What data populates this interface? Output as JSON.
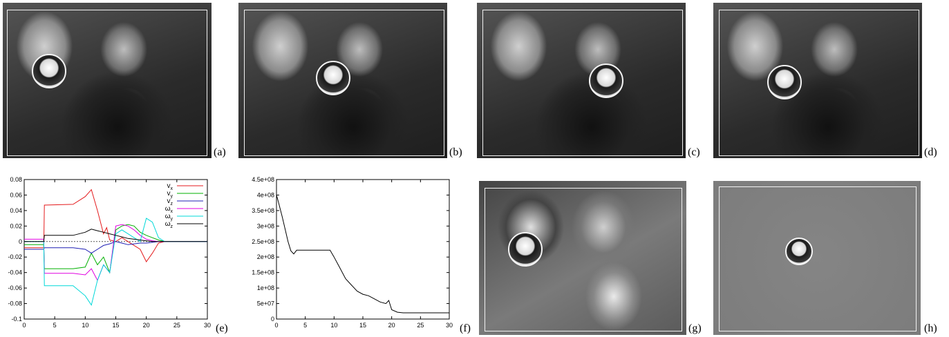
{
  "labels": {
    "a": "(a)",
    "b": "(b)",
    "c": "(c)",
    "d": "(d)",
    "e": "(e)",
    "f": "(f)",
    "g": "(g)",
    "h": "(h)"
  },
  "chart_data": [
    {
      "type": "line",
      "panel": "(e)",
      "xlim": [
        0,
        30
      ],
      "ylim": [
        -0.1,
        0.08
      ],
      "xticks": [
        0,
        5,
        10,
        15,
        20,
        25,
        30
      ],
      "yticks": [
        -0.1,
        -0.08,
        -0.06,
        -0.04,
        -0.02,
        0,
        0.02,
        0.04,
        0.06,
        0.08
      ],
      "ytick_labels": [
        "-0.1",
        "-0.08",
        "-0.06",
        "-0.04",
        "-0.02",
        "0",
        "0.02",
        "0.04",
        "0.06",
        "0.08"
      ],
      "legend_position": "top-right",
      "series": [
        {
          "name": "vx",
          "label_main": "v",
          "label_sub": "x",
          "color": "#e41a1c",
          "x": [
            0,
            3.2,
            3.3,
            8,
            10,
            11,
            12,
            13,
            13.5,
            14,
            15,
            16,
            17,
            18,
            19,
            20,
            21,
            22,
            23,
            30
          ],
          "y": [
            -0.008,
            -0.008,
            0.047,
            0.048,
            0.058,
            0.067,
            0.04,
            0.01,
            0.018,
            0.002,
            0.0,
            0.005,
            0.0,
            -0.005,
            -0.01,
            -0.026,
            -0.015,
            -0.002,
            0.0,
            0.0
          ]
        },
        {
          "name": "vy",
          "label_main": "v",
          "label_sub": "y",
          "color": "#00b000",
          "x": [
            0,
            3.2,
            3.3,
            8,
            10,
            11,
            12,
            13,
            14,
            15,
            16,
            17,
            18,
            19,
            20,
            21,
            22,
            23,
            30
          ],
          "y": [
            -0.004,
            -0.004,
            -0.035,
            -0.035,
            -0.033,
            -0.015,
            -0.03,
            -0.02,
            -0.04,
            0.015,
            0.02,
            0.022,
            0.02,
            0.012,
            0.008,
            0.005,
            0.002,
            0.0,
            0.0
          ]
        },
        {
          "name": "vz",
          "label_main": "v",
          "label_sub": "z",
          "color": "#1f1fb4",
          "x": [
            0,
            3.2,
            3.3,
            8,
            10,
            11,
            12,
            13,
            14,
            15,
            16,
            17,
            18,
            19,
            20,
            21,
            22,
            23,
            30
          ],
          "y": [
            -0.01,
            -0.01,
            -0.008,
            -0.008,
            -0.01,
            -0.015,
            -0.01,
            -0.005,
            -0.003,
            0.0,
            -0.002,
            -0.004,
            -0.003,
            -0.002,
            -0.002,
            -0.001,
            0.0,
            0.0,
            0.0
          ]
        },
        {
          "name": "ωx",
          "label_main": "ω",
          "label_sub": "x",
          "color": "#e000e0",
          "x": [
            0,
            3.2,
            3.3,
            8,
            10,
            11,
            12,
            13,
            14,
            15,
            16,
            17,
            18,
            19,
            20,
            21,
            22,
            23,
            30
          ],
          "y": [
            0.003,
            0.003,
            -0.041,
            -0.041,
            -0.043,
            -0.035,
            -0.05,
            -0.03,
            -0.04,
            0.02,
            0.022,
            0.02,
            0.015,
            0.008,
            0.003,
            0.001,
            0.0,
            0.0,
            0.0
          ]
        },
        {
          "name": "ωy",
          "label_main": "ω",
          "label_sub": "y",
          "color": "#00d8d8",
          "x": [
            0,
            3.2,
            3.3,
            8,
            10,
            11,
            12,
            13,
            14,
            15,
            16,
            17,
            18,
            19,
            20,
            21,
            22,
            23,
            30
          ],
          "y": [
            0.0,
            0.0,
            -0.057,
            -0.057,
            -0.07,
            -0.082,
            -0.05,
            -0.03,
            -0.04,
            0.01,
            0.015,
            0.01,
            0.005,
            0.0,
            0.03,
            0.025,
            0.005,
            0.0,
            0.0
          ]
        },
        {
          "name": "ωz",
          "label_main": "ω",
          "label_sub": "z",
          "color": "#000000",
          "x": [
            0,
            3.2,
            3.3,
            8,
            10,
            11,
            12,
            13,
            14,
            15,
            16,
            17,
            18,
            19,
            20,
            21,
            22,
            23,
            30
          ],
          "y": [
            0.0,
            0.0,
            0.008,
            0.008,
            0.012,
            0.016,
            0.014,
            0.012,
            0.01,
            0.008,
            0.006,
            0.004,
            0.003,
            0.002,
            0.001,
            0.0,
            0.0,
            0.0,
            0.0
          ]
        }
      ]
    },
    {
      "type": "line",
      "panel": "(f)",
      "xlim": [
        0,
        30
      ],
      "ylim": [
        0,
        450000000
      ],
      "xticks": [
        0,
        5,
        10,
        15,
        20,
        25,
        30
      ],
      "yticks": [
        0,
        50000000,
        100000000,
        150000000,
        200000000,
        250000000,
        300000000,
        350000000,
        400000000,
        450000000
      ],
      "ytick_labels": [
        "0",
        "5e+07",
        "1e+08",
        "1.5e+08",
        "2e+08",
        "2.5e+08",
        "3e+08",
        "3.5e+08",
        "4e+08",
        "4.5e+08"
      ],
      "series": [
        {
          "color": "#000000",
          "x": [
            0,
            0.3,
            1,
            1.5,
            2,
            2.5,
            3,
            3.5,
            9.3,
            10,
            11,
            12,
            13,
            14,
            15,
            16,
            17,
            18,
            19,
            19.5,
            20,
            21,
            22,
            30
          ],
          "y": [
            400000000,
            380000000,
            330000000,
            290000000,
            250000000,
            220000000,
            210000000,
            222000000,
            222000000,
            200000000,
            165000000,
            130000000,
            110000000,
            90000000,
            80000000,
            75000000,
            65000000,
            55000000,
            50000000,
            60000000,
            30000000,
            22000000,
            20000000,
            20000000
          ]
        }
      ]
    }
  ]
}
